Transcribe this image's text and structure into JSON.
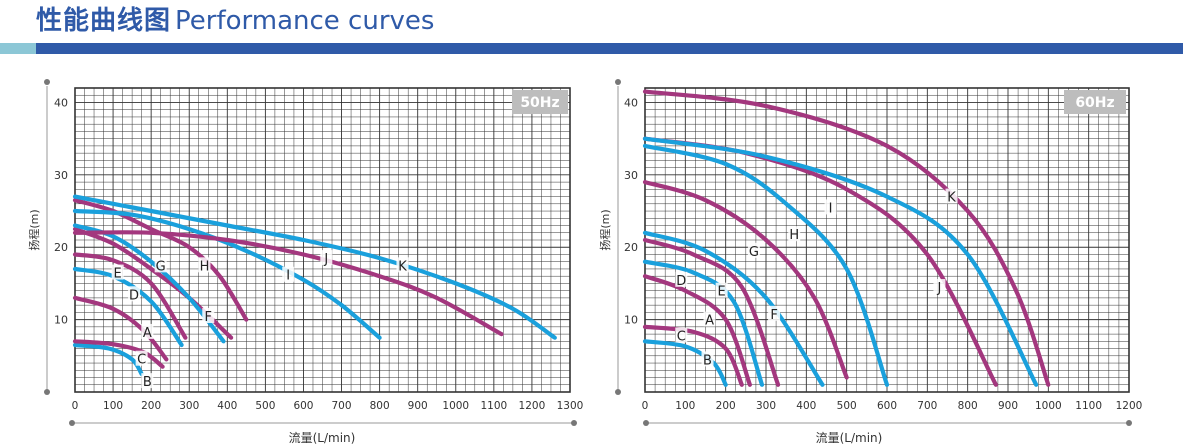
{
  "header": {
    "title_cn": "性能曲线图",
    "title_en": "Performance curves"
  },
  "colors": {
    "title": "#2f5aa8",
    "band_left": "#8cc7d6",
    "band_right": "#2f5aa8",
    "blue_curve": "#1aa0dc",
    "purple_curve": "#a3377e",
    "grid": "#333333",
    "badge": "#bdbdbd"
  },
  "chart_data": [
    {
      "type": "line",
      "badge": "50Hz",
      "xlabel": "流量(L/min)",
      "ylabel": "扬程(m)",
      "xlim": [
        0,
        1300
      ],
      "ylim": [
        0,
        42
      ],
      "x_ticks": [
        0,
        100,
        200,
        300,
        400,
        500,
        600,
        700,
        800,
        900,
        1000,
        1100,
        1200,
        1300
      ],
      "y_ticks": [
        10,
        20,
        30,
        40
      ],
      "grid": true,
      "series": [
        {
          "name": "B",
          "color": "blue",
          "points": [
            [
              0,
              6.5
            ],
            [
              90,
              6.0
            ],
            [
              150,
              4.5
            ],
            [
              175,
              2.5
            ]
          ],
          "label_at": [
            190,
            1.5
          ]
        },
        {
          "name": "C",
          "color": "purple",
          "points": [
            [
              0,
              7
            ],
            [
              100,
              6.6
            ],
            [
              180,
              5.5
            ],
            [
              230,
              3.5
            ]
          ],
          "label_at": [
            175,
            4.6
          ]
        },
        {
          "name": "A",
          "color": "purple",
          "points": [
            [
              0,
              13
            ],
            [
              100,
              11.5
            ],
            [
              180,
              8.5
            ],
            [
              240,
              4.5
            ]
          ],
          "label_at": [
            190,
            8.3
          ]
        },
        {
          "name": "D",
          "color": "blue",
          "points": [
            [
              0,
              17
            ],
            [
              100,
              16
            ],
            [
              200,
              12.5
            ],
            [
              280,
              6.5
            ]
          ],
          "label_at": [
            155,
            13.5
          ]
        },
        {
          "name": "E",
          "color": "purple",
          "points": [
            [
              0,
              19
            ],
            [
              100,
              18.2
            ],
            [
              200,
              15
            ],
            [
              290,
              7.5
            ]
          ],
          "label_at": [
            112,
            16.5
          ]
        },
        {
          "name": "F",
          "color": "purple",
          "points": [
            [
              0,
              22.5
            ],
            [
              100,
              20.5
            ],
            [
              200,
              17
            ],
            [
              300,
              13
            ],
            [
              410,
              7.5
            ]
          ],
          "label_at": [
            350,
            10.5
          ]
        },
        {
          "name": "G",
          "color": "blue",
          "points": [
            [
              0,
              23
            ],
            [
              100,
              21.5
            ],
            [
              200,
              18
            ],
            [
              300,
              13
            ],
            [
              390,
              7
            ]
          ],
          "label_at": [
            225,
            17.5
          ]
        },
        {
          "name": "H",
          "color": "purple",
          "points": [
            [
              0,
              26.5
            ],
            [
              100,
              25
            ],
            [
              200,
              22.5
            ],
            [
              300,
              20
            ],
            [
              380,
              16
            ],
            [
              450,
              10
            ]
          ],
          "label_at": [
            340,
            17.5
          ]
        },
        {
          "name": "I",
          "color": "blue",
          "points": [
            [
              0,
              25
            ],
            [
              150,
              24.5
            ],
            [
              300,
              22.5
            ],
            [
              450,
              19.5
            ],
            [
              600,
              15.5
            ],
            [
              700,
              12
            ],
            [
              800,
              7.5
            ]
          ],
          "label_at": [
            560,
            16.2
          ]
        },
        {
          "name": "J",
          "color": "purple",
          "points": [
            [
              0,
              22
            ],
            [
              200,
              22
            ],
            [
              400,
              21
            ],
            [
              600,
              19
            ],
            [
              800,
              16
            ],
            [
              950,
              13
            ],
            [
              1120,
              8
            ]
          ],
          "label_at": [
            660,
            18.5
          ]
        },
        {
          "name": "K",
          "color": "blue",
          "points": [
            [
              0,
              27
            ],
            [
              200,
              25
            ],
            [
              400,
              23
            ],
            [
              600,
              21
            ],
            [
              800,
              18.5
            ],
            [
              1000,
              15
            ],
            [
              1150,
              11.5
            ],
            [
              1260,
              7.5
            ]
          ],
          "label_at": [
            860,
            17.5
          ]
        }
      ]
    },
    {
      "type": "line",
      "badge": "60Hz",
      "xlabel": "流量(L/min)",
      "ylabel": "扬程(m)",
      "xlim": [
        0,
        1200
      ],
      "ylim": [
        0,
        42
      ],
      "x_ticks": [
        0,
        100,
        200,
        300,
        400,
        500,
        600,
        700,
        800,
        900,
        1000,
        1100,
        1200
      ],
      "y_ticks": [
        10,
        20,
        30,
        40
      ],
      "grid": true,
      "series": [
        {
          "name": "B",
          "color": "blue",
          "points": [
            [
              0,
              7
            ],
            [
              100,
              6.3
            ],
            [
              170,
              4
            ],
            [
              200,
              1
            ]
          ],
          "label_at": [
            155,
            4.5
          ]
        },
        {
          "name": "C",
          "color": "purple",
          "points": [
            [
              0,
              9
            ],
            [
              120,
              8.3
            ],
            [
              200,
              6
            ],
            [
              240,
              1
            ]
          ],
          "label_at": [
            90,
            7.8
          ]
        },
        {
          "name": "A",
          "color": "purple",
          "points": [
            [
              0,
              16
            ],
            [
              100,
              14
            ],
            [
              200,
              10
            ],
            [
              260,
              1
            ]
          ],
          "label_at": [
            160,
            10
          ]
        },
        {
          "name": "D",
          "color": "blue",
          "points": [
            [
              0,
              18
            ],
            [
              120,
              16.5
            ],
            [
              220,
              12.5
            ],
            [
              290,
              1
            ]
          ],
          "label_at": [
            90,
            15.5
          ]
        },
        {
          "name": "E",
          "color": "purple",
          "points": [
            [
              0,
              21
            ],
            [
              120,
              19
            ],
            [
              240,
              14.5
            ],
            [
              330,
              1
            ]
          ],
          "label_at": [
            190,
            14
          ]
        },
        {
          "name": "F",
          "color": "blue",
          "points": [
            [
              0,
              22
            ],
            [
              150,
              19.5
            ],
            [
              300,
              13
            ],
            [
              440,
              1
            ]
          ],
          "label_at": [
            320,
            10.8
          ]
        },
        {
          "name": "G",
          "color": "purple",
          "points": [
            [
              0,
              29
            ],
            [
              150,
              26.5
            ],
            [
              300,
              21
            ],
            [
              420,
              13
            ],
            [
              500,
              2
            ]
          ],
          "label_at": [
            270,
            19.5
          ]
        },
        {
          "name": "H",
          "color": "blue",
          "points": [
            [
              0,
              34
            ],
            [
              200,
              31.5
            ],
            [
              350,
              26
            ],
            [
              500,
              17
            ],
            [
              600,
              1
            ]
          ],
          "label_at": [
            370,
            21.8
          ]
        },
        {
          "name": "I",
          "color": "purple",
          "points": [
            [
              0,
              35
            ],
            [
              250,
              33
            ],
            [
              500,
              28
            ],
            [
              700,
              19
            ],
            [
              870,
              1
            ]
          ],
          "label_at": [
            460,
            25.5
          ]
        },
        {
          "name": "J",
          "color": "blue",
          "points": [
            [
              0,
              35
            ],
            [
              300,
              32.5
            ],
            [
              600,
              27
            ],
            [
              800,
              19
            ],
            [
              970,
              1
            ]
          ],
          "label_at": [
            730,
            14.5
          ]
        },
        {
          "name": "K",
          "color": "purple",
          "points": [
            [
              0,
              41.5
            ],
            [
              300,
              39.5
            ],
            [
              600,
              34
            ],
            [
              800,
              25
            ],
            [
              920,
              14
            ],
            [
              1000,
              1
            ]
          ],
          "label_at": [
            760,
            27
          ]
        }
      ]
    }
  ]
}
